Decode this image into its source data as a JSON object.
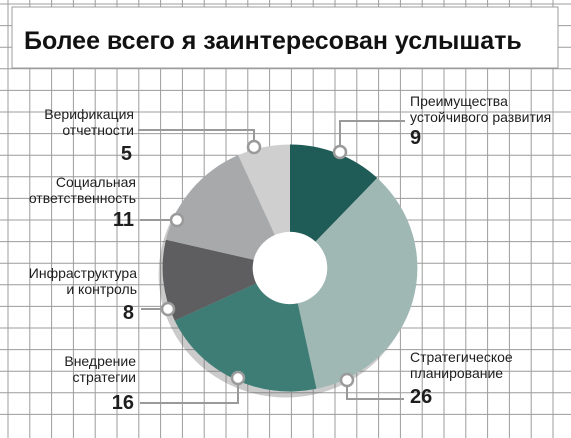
{
  "header": {
    "title": "Более всего я заинтересован услышать"
  },
  "chart_data": {
    "type": "pie",
    "variant": "donut",
    "title": "Более всего я заинтересован услышать",
    "slices": [
      {
        "label": "Преимущества устойчивого развития",
        "label_lines": [
          "Преимущества",
          "устойчивого развития"
        ],
        "value": 9,
        "color": "#1f5b57"
      },
      {
        "label": "Стратегическое планирование",
        "label_lines": [
          "Стратегическое",
          "планирование"
        ],
        "value": 26,
        "color": "#9fb8b4"
      },
      {
        "label": "Внедрение стратегии",
        "label_lines": [
          "Внедрение",
          "стратегии"
        ],
        "value": 16,
        "color": "#3d7d76"
      },
      {
        "label": "Инфраструктура и контроль",
        "label_lines": [
          "Инфраструктура",
          "и контроль"
        ],
        "value": 8,
        "color": "#5e5e60"
      },
      {
        "label": "Социальная ответственность",
        "label_lines": [
          "Социальная",
          "ответственность"
        ],
        "value": 11,
        "color": "#a8a9ab"
      },
      {
        "label": "Верификация отчетности",
        "label_lines": [
          "Верификация",
          "отчетности"
        ],
        "value": 5,
        "color": "#cfcfd0"
      }
    ],
    "grid": true,
    "legend": "none",
    "colors": {
      "grid": "#9c9c9c",
      "leader": "#9a9a9a",
      "text": "#1e1e1e",
      "hole": "#ffffff"
    }
  }
}
